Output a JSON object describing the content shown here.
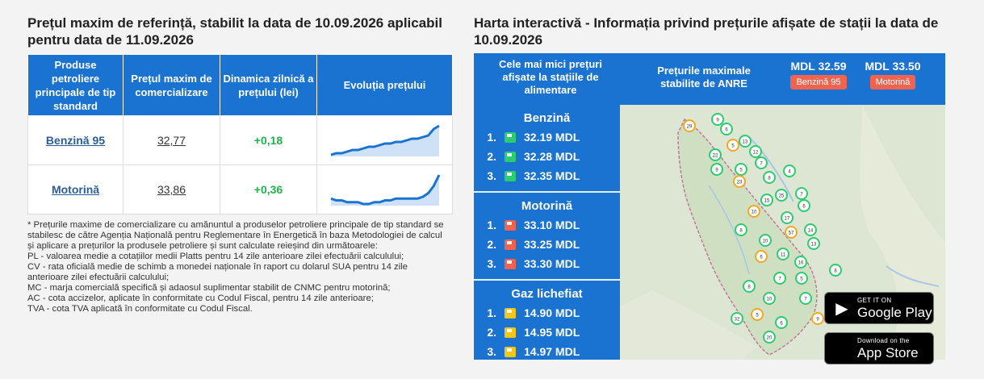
{
  "left": {
    "title": "Prețul maxim de referință, stabilit la data de 10.09.2026 aplicabil pentru data de 11.09.2026",
    "headers": [
      "Produse petroliere principale de tip standard",
      "Prețul maxim de comercializare",
      "Dinamica zilnică a prețului (lei)",
      "Evoluția prețului"
    ],
    "rows": [
      {
        "product": "Benzină 95",
        "price": "32,77",
        "change": "+0,18",
        "trend": [
          2,
          3,
          3,
          4,
          5,
          5,
          6,
          7,
          7,
          8,
          9,
          9,
          10,
          10,
          11,
          12,
          12,
          13,
          14,
          18,
          20
        ]
      },
      {
        "product": "Motorină",
        "price": "33,86",
        "change": "+0,36",
        "trend": [
          5,
          4,
          4,
          3,
          3,
          3,
          2,
          2,
          3,
          3,
          4,
          4,
          5,
          5,
          5,
          5,
          5,
          6,
          8,
          12,
          18
        ]
      }
    ],
    "notes": [
      "* Prețurile maxime de comercializare cu amănuntul a produselor petroliere principale de tip standard se stabilesc de către Agenția Națională pentru Reglementare în Energetică în baza Metodologiei de calcul și aplicare a prețurilor la produsele petroliere și sunt calculate reieșind din următoarele:",
      "PL - valoarea medie a cotațiilor medii Platts pentru 14 zile anterioare zilei efectuării calculului;",
      "CV - rata oficială medie de schimb a monedei naționale în raport cu dolarul SUA pentru 14 zile anterioare zilei efectuării calculului;",
      "MC - marja comercială specifică și adaosul suplimentar stabilit de CNMC pentru motorină;",
      "AC - cota accizelor, aplicate în conformitate cu Codul Fiscal, pentru 14 zile anterioare;",
      "TVA - cota TVA aplicată în conformitate cu Codul Fiscal."
    ]
  },
  "right": {
    "title": "Harta interactivă - Informația privind prețurile afișate de stații la data de 10.09.2026",
    "lowest_label": "Cele mai mici prețuri afișate la stațiile de alimentare",
    "max_label": "Prețurile maximale stabilite de ANRE",
    "max_benzina": {
      "value": "MDL 32.59",
      "badge": "Benzină 95"
    },
    "max_motorina": {
      "value": "MDL 33.50",
      "badge": "Motorină"
    },
    "groups": [
      {
        "name": "Benzină",
        "color": "#2ecc71",
        "items": [
          {
            "n": "1.",
            "price": "32.19 MDL"
          },
          {
            "n": "2.",
            "price": "32.28 MDL"
          },
          {
            "n": "3.",
            "price": "32.35 MDL"
          }
        ]
      },
      {
        "name": "Motorină",
        "color": "#f0634f",
        "items": [
          {
            "n": "1.",
            "price": "33.10 MDL"
          },
          {
            "n": "2.",
            "price": "33.25 MDL"
          },
          {
            "n": "3.",
            "price": "33.30 MDL"
          }
        ]
      },
      {
        "name": "Gaz lichefiat",
        "color": "#f5c518",
        "items": [
          {
            "n": "1.",
            "price": "14.90 MDL"
          },
          {
            "n": "2.",
            "price": "14.95 MDL"
          },
          {
            "n": "3.",
            "price": "14.97 MDL"
          }
        ]
      }
    ],
    "map_labels": [
      "29",
      "9",
      "6",
      "13",
      "12",
      "5",
      "22",
      "9",
      "5",
      "7",
      "23",
      "8",
      "4",
      "15",
      "25",
      "10",
      "7",
      "17",
      "6",
      "14",
      "57",
      "13",
      "10",
      "11",
      "8",
      "6",
      "16",
      "7",
      "10",
      "8",
      "5",
      "32",
      "20",
      "6",
      "7",
      "9",
      "8",
      "5"
    ],
    "google_play": {
      "small": "GET IT ON",
      "big": "Google Play"
    },
    "app_store": {
      "small": "Download on the",
      "big": "App Store"
    }
  },
  "colors": {
    "accent": "#1a73d0",
    "positive": "#1eb44a",
    "badge": "#f0634f"
  }
}
